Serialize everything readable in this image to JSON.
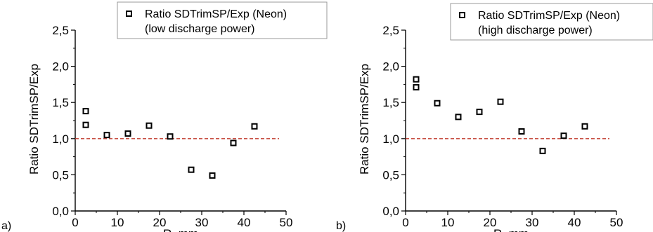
{
  "chart_data": [
    {
      "type": "scatter",
      "panel_label": "a)",
      "xlabel": "R, mm",
      "ylabel": "Ratio SDTrimSP/Exp",
      "xlim": [
        0,
        50
      ],
      "ylim": [
        0,
        2.5
      ],
      "x_ticks": [
        "0",
        "10",
        "20",
        "30",
        "40",
        "50"
      ],
      "y_ticks": [
        "0,0",
        "0,5",
        "1,0",
        "1,5",
        "2,0",
        "2,5"
      ],
      "reference_line": {
        "y": 1.0,
        "color": "#c0392b",
        "style": "dashed"
      },
      "legend": {
        "placement": "top-right",
        "line1": "Ratio SDTrimSP/Exp (Neon)",
        "line2": "(low discharge power)"
      },
      "series": [
        {
          "marker": "open-square",
          "x": [
            2.5,
            2.5,
            7.5,
            12.5,
            17.5,
            22.5,
            27.5,
            32.5,
            37.5,
            42.5
          ],
          "y": [
            1.38,
            1.19,
            1.05,
            1.07,
            1.18,
            1.03,
            0.57,
            0.49,
            0.94,
            1.17
          ]
        }
      ]
    },
    {
      "type": "scatter",
      "panel_label": "b)",
      "xlabel": "R, mm",
      "ylabel": "Ratio SDTrimSP/Exp",
      "xlim": [
        0,
        50
      ],
      "ylim": [
        0,
        2.5
      ],
      "x_ticks": [
        "0",
        "10",
        "20",
        "30",
        "40",
        "50"
      ],
      "y_ticks": [
        "0,0",
        "0,5",
        "1,0",
        "1,5",
        "2,0",
        "2,5"
      ],
      "reference_line": {
        "y": 1.0,
        "color": "#c0392b",
        "style": "dashed"
      },
      "legend": {
        "placement": "top-right",
        "line1": "Ratio SDTrimSP/Exp (Neon)",
        "line2": "(high discharge power)"
      },
      "series": [
        {
          "marker": "open-square",
          "x": [
            2.5,
            2.5,
            7.5,
            12.5,
            17.5,
            22.5,
            27.5,
            32.5,
            37.5,
            42.5
          ],
          "y": [
            1.82,
            1.71,
            1.49,
            1.3,
            1.37,
            1.51,
            1.1,
            0.83,
            1.04,
            1.17
          ]
        }
      ]
    }
  ]
}
